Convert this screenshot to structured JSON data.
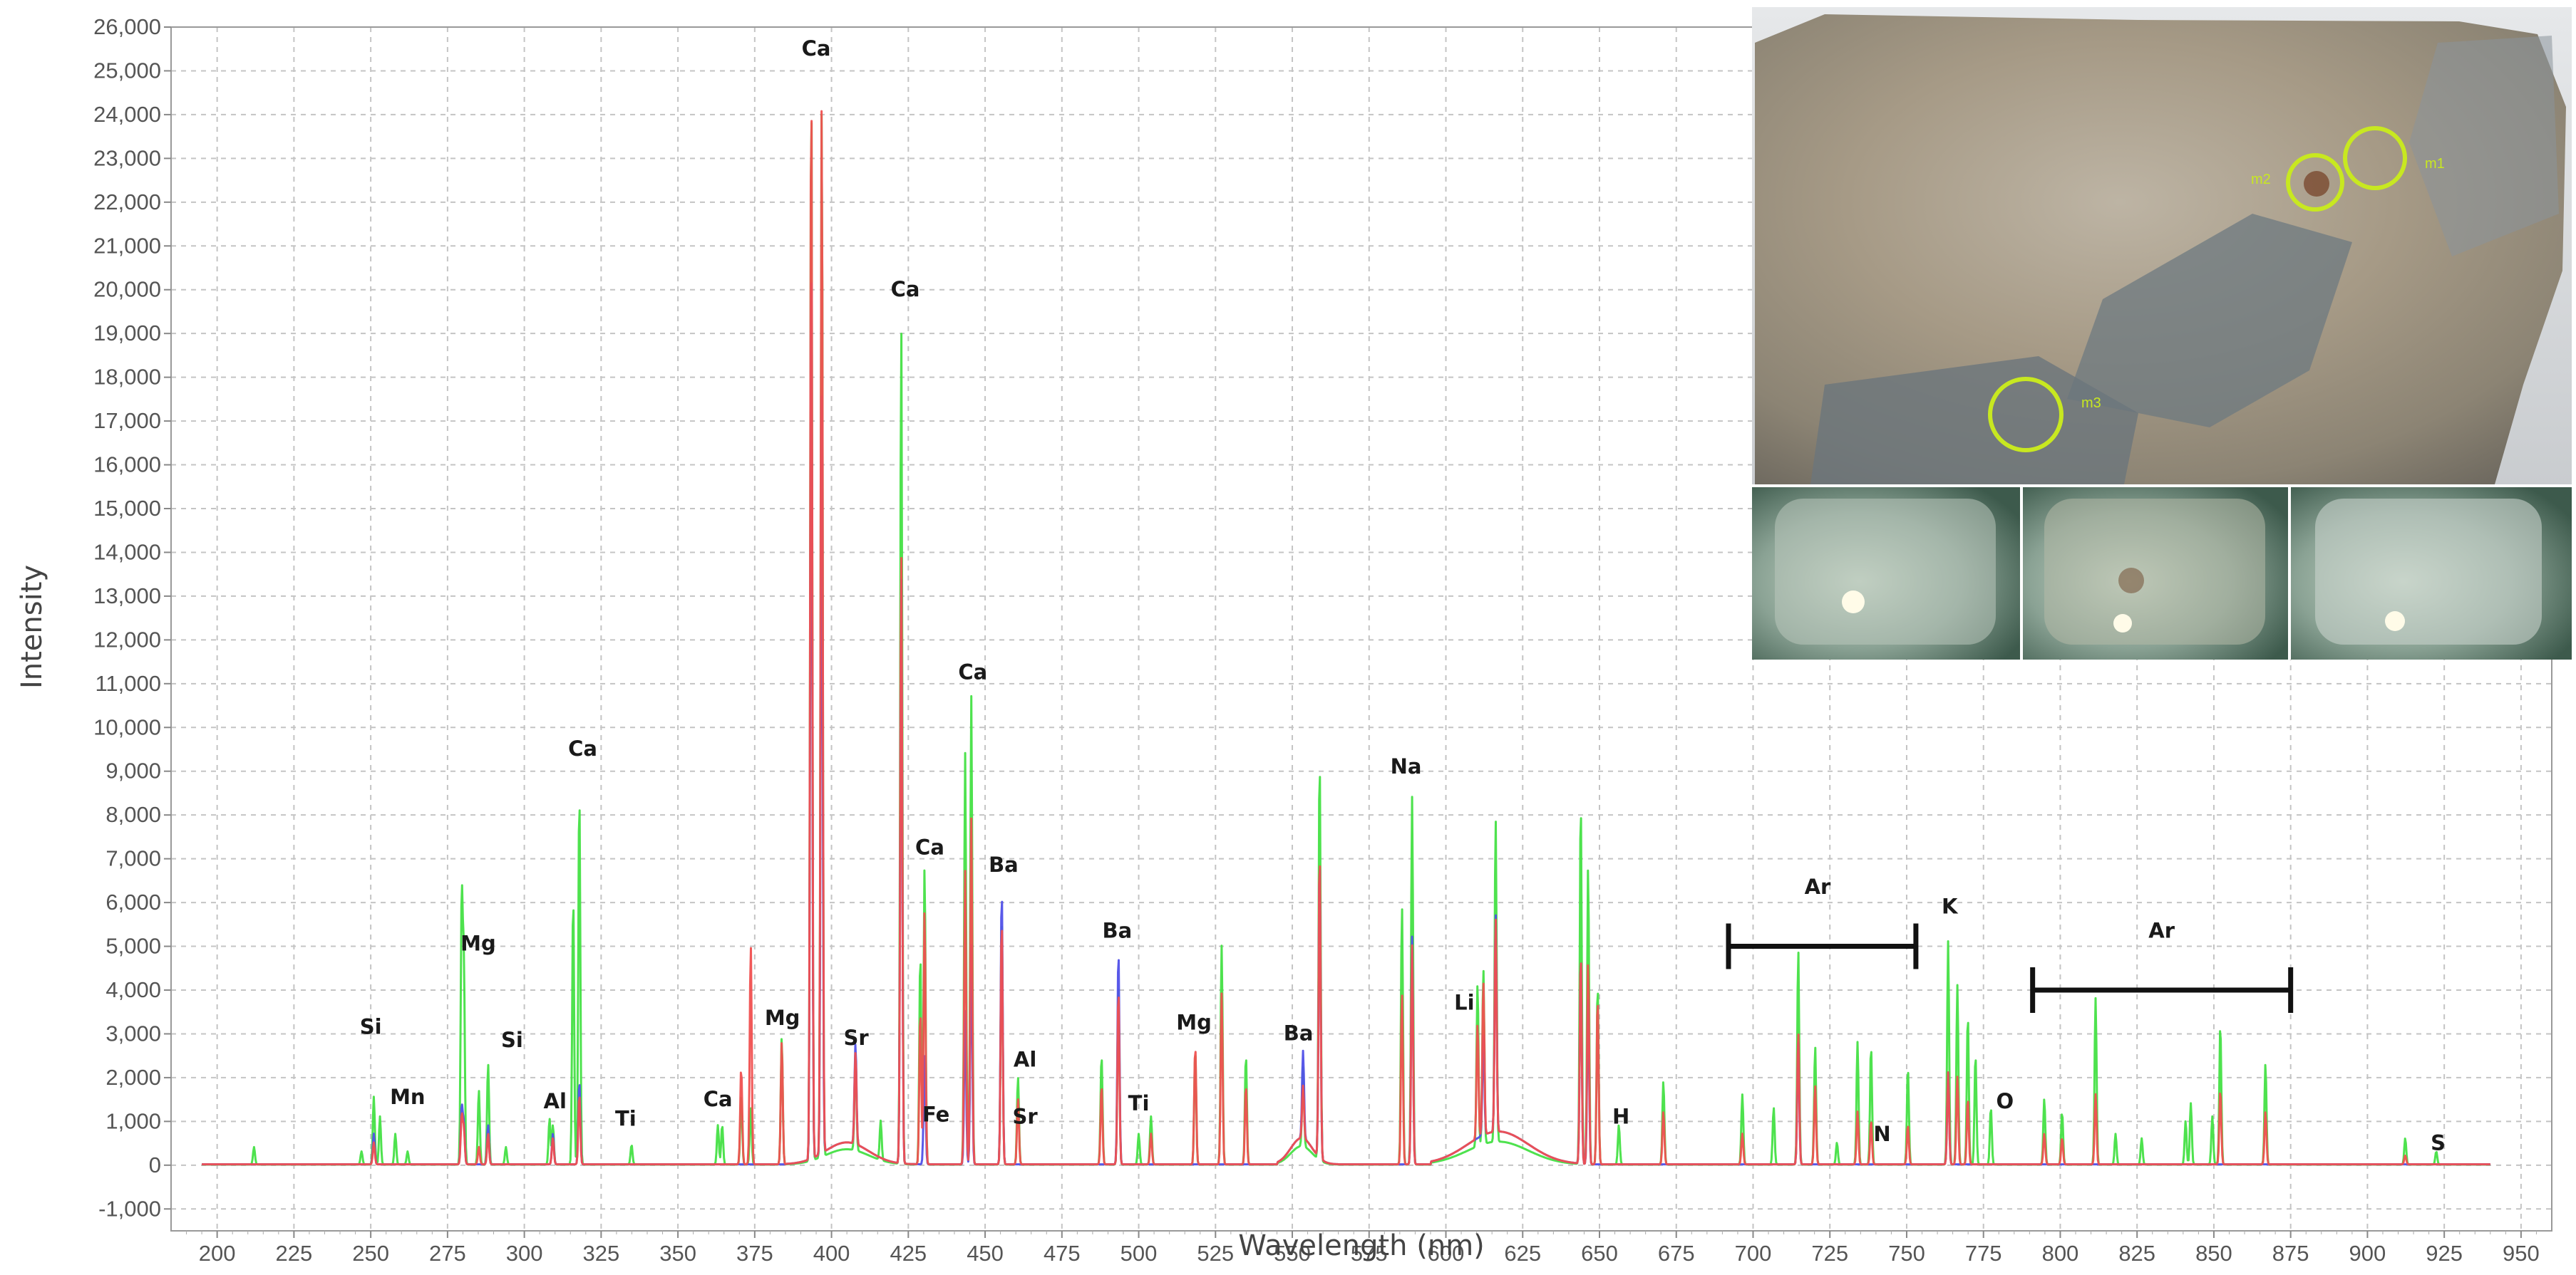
{
  "chart_data": {
    "type": "line",
    "xlabel": "Wavelength (nm)",
    "ylabel": "Intensity",
    "xlim": [
      185,
      960
    ],
    "ylim": [
      -1500,
      26000
    ],
    "x_ticks": [
      200,
      225,
      250,
      275,
      300,
      325,
      350,
      375,
      400,
      425,
      450,
      475,
      500,
      525,
      550,
      575,
      600,
      625,
      650,
      675,
      700,
      725,
      750,
      775,
      800,
      825,
      850,
      875,
      900,
      925,
      950
    ],
    "y_ticks": [
      -1000,
      0,
      1000,
      2000,
      3000,
      4000,
      5000,
      6000,
      7000,
      8000,
      9000,
      10000,
      11000,
      12000,
      13000,
      14000,
      15000,
      16000,
      17000,
      18000,
      19000,
      20000,
      21000,
      22000,
      23000,
      24000,
      25000,
      26000
    ],
    "y_tick_labels": [
      "-1,000",
      "0",
      "1,000",
      "2,000",
      "3,000",
      "4,000",
      "5,000",
      "6,000",
      "7,000",
      "8,000",
      "9,000",
      "10,000",
      "11,000",
      "12,000",
      "13,000",
      "14,000",
      "15,000",
      "16,000",
      "17,000",
      "18,000",
      "19,000",
      "20,000",
      "21,000",
      "22,000",
      "23,000",
      "24,000",
      "25,000",
      "26,000"
    ],
    "grid": true,
    "colors": {
      "green": "#44e044",
      "blue": "#5050e8",
      "red": "#f05050"
    },
    "series": [
      {
        "color": "#44e044",
        "peaks": [
          [
            212,
            400
          ],
          [
            247,
            300
          ],
          [
            251,
            1550
          ],
          [
            253,
            1100
          ],
          [
            258,
            700
          ],
          [
            262,
            300
          ],
          [
            279.6,
            6000
          ],
          [
            280.3,
            4500
          ],
          [
            285.2,
            1700
          ],
          [
            288.2,
            2300
          ],
          [
            294,
            400
          ],
          [
            308.2,
            1050
          ],
          [
            309.3,
            900
          ],
          [
            315.9,
            6100
          ],
          [
            317.9,
            8500
          ],
          [
            334.9,
            450
          ],
          [
            363,
            900
          ],
          [
            364.4,
            900
          ],
          [
            370.6,
            1600
          ],
          [
            373.7,
            1300
          ],
          [
            383.8,
            2900
          ],
          [
            393.4,
            24900
          ],
          [
            396.8,
            24100
          ],
          [
            407.8,
            2200
          ],
          [
            416,
            900
          ],
          [
            422.7,
            19200
          ],
          [
            428.9,
            4800
          ],
          [
            430.3,
            6800
          ],
          [
            443.5,
            9400
          ],
          [
            445.5,
            10700
          ],
          [
            455.4,
            5700
          ],
          [
            460.7,
            2000
          ],
          [
            487.9,
            2500
          ],
          [
            493.4,
            4200
          ],
          [
            500,
            700
          ],
          [
            504,
            1100
          ],
          [
            518.4,
            2600
          ],
          [
            527,
            5000
          ],
          [
            534.9,
            2500
          ],
          [
            553.5,
            1800
          ],
          [
            558.9,
            9200
          ],
          [
            585.7,
            5900
          ],
          [
            589,
            8400
          ],
          [
            610.3,
            3700
          ],
          [
            612.2,
            4000
          ],
          [
            616.2,
            7400
          ],
          [
            643.9,
            8300
          ],
          [
            646.3,
            6800
          ],
          [
            649.4,
            4100
          ],
          [
            656.3,
            900
          ],
          [
            670.8,
            1900
          ],
          [
            696.5,
            1600
          ],
          [
            706.7,
            1300
          ],
          [
            714.7,
            4900
          ],
          [
            720.2,
            2700
          ],
          [
            727.3,
            500
          ],
          [
            734,
            2800
          ],
          [
            738.4,
            2700
          ],
          [
            750.4,
            2200
          ],
          [
            763.5,
            5100
          ],
          [
            766.5,
            4100
          ],
          [
            769.9,
            3400
          ],
          [
            772.4,
            2500
          ],
          [
            777.4,
            1300
          ],
          [
            794.8,
            1500
          ],
          [
            800.6,
            1200
          ],
          [
            811.5,
            3800
          ],
          [
            818,
            700
          ],
          [
            826.5,
            600
          ],
          [
            840.8,
            1000
          ],
          [
            842.5,
            1400
          ],
          [
            849.5,
            1100
          ],
          [
            852.1,
            3200
          ],
          [
            866.8,
            2300
          ],
          [
            912.3,
            600
          ],
          [
            922.4,
            300
          ]
        ]
      },
      {
        "color": "#5050e8",
        "peaks": [
          [
            251,
            700
          ],
          [
            279.6,
            1300
          ],
          [
            280.3,
            900
          ],
          [
            288.2,
            900
          ],
          [
            309.3,
            700
          ],
          [
            317.9,
            1900
          ],
          [
            393.4,
            21000
          ],
          [
            396.8,
            17500
          ],
          [
            407.8,
            2300
          ],
          [
            422.7,
            13500
          ],
          [
            430.3,
            2500
          ],
          [
            443.5,
            3500
          ],
          [
            445.5,
            5000
          ],
          [
            455.4,
            6300
          ],
          [
            493.4,
            4900
          ],
          [
            553.5,
            2000
          ],
          [
            558.9,
            6900
          ],
          [
            589,
            5200
          ],
          [
            612.2,
            2300
          ],
          [
            616.2,
            5000
          ],
          [
            643.9,
            4800
          ],
          [
            646.3,
            3800
          ],
          [
            714.7,
            2800
          ],
          [
            763.5,
            2100
          ]
        ]
      },
      {
        "color": "#f05050",
        "peaks": [
          [
            251,
            500
          ],
          [
            279.6,
            1100
          ],
          [
            280.3,
            800
          ],
          [
            285.2,
            400
          ],
          [
            288.2,
            700
          ],
          [
            309.3,
            600
          ],
          [
            317.9,
            1600
          ],
          [
            370.6,
            2200
          ],
          [
            373.7,
            5000
          ],
          [
            383.8,
            2800
          ],
          [
            393.4,
            24900
          ],
          [
            396.8,
            24100
          ],
          [
            407.8,
            2100
          ],
          [
            422.7,
            14000
          ],
          [
            428.9,
            3500
          ],
          [
            430.3,
            5800
          ],
          [
            443.5,
            6700
          ],
          [
            445.5,
            7900
          ],
          [
            455.4,
            5600
          ],
          [
            460.7,
            1500
          ],
          [
            487.9,
            1800
          ],
          [
            493.4,
            4000
          ],
          [
            504,
            700
          ],
          [
            518.4,
            2700
          ],
          [
            527,
            3900
          ],
          [
            534.9,
            1800
          ],
          [
            553.5,
            1200
          ],
          [
            558.9,
            7000
          ],
          [
            585.7,
            3900
          ],
          [
            589,
            5000
          ],
          [
            610.3,
            2600
          ],
          [
            612.2,
            3500
          ],
          [
            616.2,
            4900
          ],
          [
            643.9,
            4800
          ],
          [
            646.3,
            4600
          ],
          [
            649.4,
            3800
          ],
          [
            670.8,
            1200
          ],
          [
            696.5,
            700
          ],
          [
            714.7,
            3000
          ],
          [
            720.2,
            1800
          ],
          [
            734,
            1200
          ],
          [
            738.4,
            1000
          ],
          [
            750.4,
            900
          ],
          [
            763.5,
            2100
          ],
          [
            766.5,
            2000
          ],
          [
            769.9,
            1500
          ],
          [
            794.8,
            700
          ],
          [
            800.6,
            600
          ],
          [
            811.5,
            1600
          ],
          [
            852.1,
            1700
          ],
          [
            866.8,
            1200
          ],
          [
            912.3,
            200
          ]
        ]
      }
    ],
    "annotations": [
      {
        "text": "Ca",
        "x": 395,
        "y": 25350
      },
      {
        "text": "Ca",
        "x": 424,
        "y": 19850
      },
      {
        "text": "Ca",
        "x": 319,
        "y": 9350
      },
      {
        "text": "Ca",
        "x": 446,
        "y": 11100
      },
      {
        "text": "Ca",
        "x": 432,
        "y": 7100
      },
      {
        "text": "Ca",
        "x": 363,
        "y": 1350
      },
      {
        "text": "Si",
        "x": 250,
        "y": 3000
      },
      {
        "text": "Mn",
        "x": 262,
        "y": 1400
      },
      {
        "text": "Mg",
        "x": 285,
        "y": 4900
      },
      {
        "text": "Si",
        "x": 296,
        "y": 2700
      },
      {
        "text": "Al",
        "x": 310,
        "y": 1300
      },
      {
        "text": "Ti",
        "x": 333,
        "y": 900
      },
      {
        "text": "Mg",
        "x": 384,
        "y": 3200
      },
      {
        "text": "Sr",
        "x": 408,
        "y": 2750
      },
      {
        "text": "Fe",
        "x": 434,
        "y": 1000
      },
      {
        "text": "Ba",
        "x": 456,
        "y": 6700
      },
      {
        "text": "Al",
        "x": 463,
        "y": 2250
      },
      {
        "text": "Sr",
        "x": 463,
        "y": 950
      },
      {
        "text": "Ba",
        "x": 493,
        "y": 5200
      },
      {
        "text": "Ti",
        "x": 500,
        "y": 1250
      },
      {
        "text": "Mg",
        "x": 518,
        "y": 3100
      },
      {
        "text": "Ba",
        "x": 552,
        "y": 2850
      },
      {
        "text": "Na",
        "x": 587,
        "y": 8950
      },
      {
        "text": "Li",
        "x": 606,
        "y": 3550
      },
      {
        "text": "H",
        "x": 657,
        "y": 950
      },
      {
        "text": "Ar",
        "x": 721,
        "y": 6200
      },
      {
        "text": "K",
        "x": 764,
        "y": 5750
      },
      {
        "text": "N",
        "x": 742,
        "y": 550
      },
      {
        "text": "O",
        "x": 782,
        "y": 1300
      },
      {
        "text": "Ar",
        "x": 833,
        "y": 5200
      },
      {
        "text": "S",
        "x": 923,
        "y": 350
      }
    ],
    "brackets": [
      {
        "label": "Ar",
        "x0": 692,
        "x1": 753,
        "y": 5000
      },
      {
        "label": "Ar",
        "x0": 791,
        "x1": 875,
        "y": 4000
      }
    ]
  },
  "inset_photo": {
    "markers": [
      "m1",
      "m2",
      "m3"
    ],
    "sample_images": 3
  }
}
